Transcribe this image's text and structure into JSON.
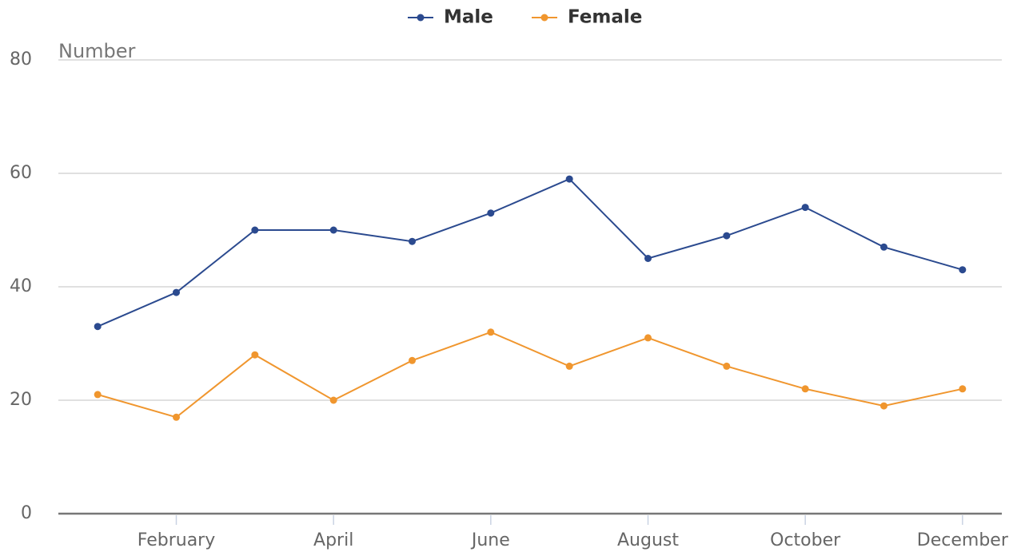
{
  "chart_data": {
    "type": "line",
    "y_axis_label": "Number",
    "categories": [
      null,
      "February",
      null,
      "April",
      null,
      "June",
      null,
      "August",
      null,
      "October",
      null,
      "December"
    ],
    "series": [
      {
        "name": "Male",
        "color": "#2b4a8f",
        "values": [
          33,
          39,
          50,
          50,
          48,
          53,
          59,
          45,
          49,
          54,
          47,
          43
        ]
      },
      {
        "name": "Female",
        "color": "#f0962e",
        "values": [
          21,
          17,
          28,
          20,
          27,
          32,
          26,
          31,
          26,
          22,
          19,
          22
        ]
      }
    ],
    "ylim": [
      0,
      80
    ],
    "yticks": [
      0,
      20,
      40,
      60,
      80
    ],
    "grid": true,
    "legend": "top"
  }
}
